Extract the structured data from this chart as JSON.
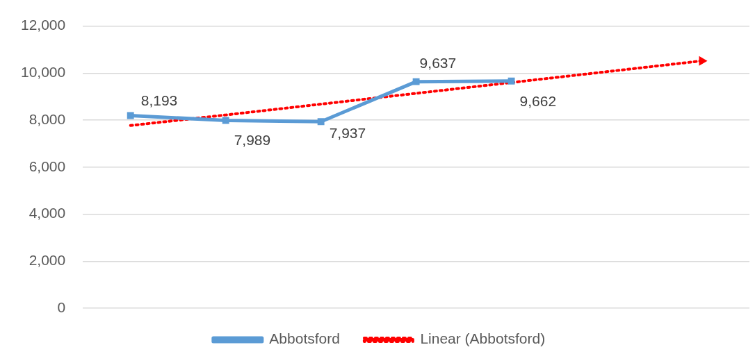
{
  "chart_data": {
    "type": "line",
    "categories": [
      null,
      null,
      null,
      null,
      null,
      null,
      null
    ],
    "series": [
      {
        "name": "Abbotsford",
        "color": "#5b9bd5",
        "values": [
          8193,
          7989,
          7937,
          9637,
          9662,
          null,
          null
        ],
        "value_labels": [
          "8,193",
          "7,989",
          "7,937",
          "9,637",
          "9,662",
          null,
          null
        ],
        "marker": "square",
        "line_style": "solid"
      },
      {
        "name": "Linear (Abbotsford)",
        "color": "#ff0000",
        "values": [
          7770,
          8220,
          8680,
          9140,
          9600,
          10060,
          10520
        ],
        "marker": "none",
        "line_style": "dotted"
      }
    ],
    "ylim": [
      0,
      12000
    ],
    "yticks": [
      {
        "value": 0,
        "label": "0"
      },
      {
        "value": 2000,
        "label": "2,000"
      },
      {
        "value": 4000,
        "label": "4,000"
      },
      {
        "value": 6000,
        "label": "6,000"
      },
      {
        "value": 8000,
        "label": "8,000"
      },
      {
        "value": 10000,
        "label": "10,000"
      },
      {
        "value": 12000,
        "label": "12,000"
      }
    ],
    "grid": "y",
    "legend": "bottom",
    "tick_labels": "y"
  }
}
